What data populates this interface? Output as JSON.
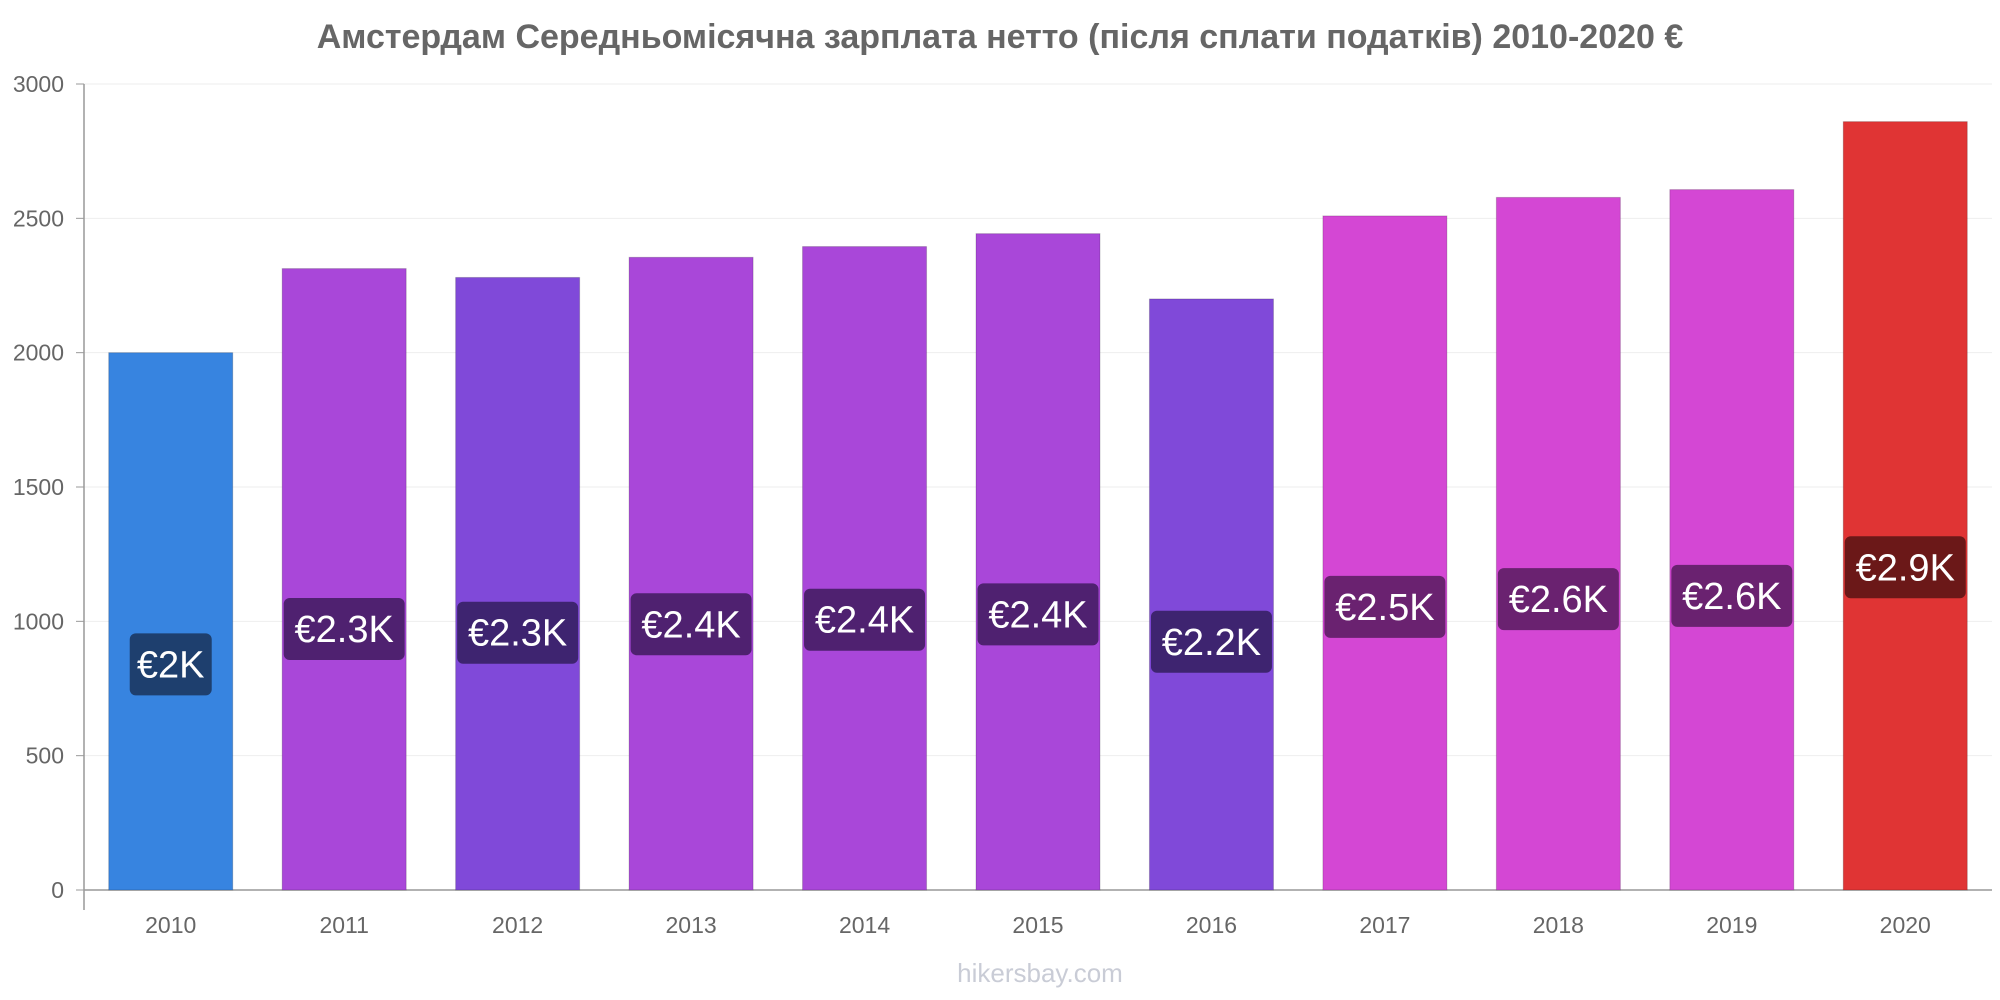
{
  "chart_data": {
    "type": "bar",
    "title": "Амстердам Середньомісячна зарплата нетто (після сплати податків) 2010-2020 €",
    "categories": [
      "2010",
      "2011",
      "2012",
      "2013",
      "2014",
      "2015",
      "2016",
      "2017",
      "2018",
      "2019",
      "2020"
    ],
    "values": [
      2000,
      2313,
      2280,
      2355,
      2395,
      2443,
      2200,
      2509,
      2578,
      2607,
      2860
    ],
    "data_labels": [
      "€2K",
      "€2.3K",
      "€2.3K",
      "€2.4K",
      "€2.4K",
      "€2.4K",
      "€2.2K",
      "€2.5K",
      "€2.6K",
      "€2.6K",
      "€2.9K"
    ],
    "bar_colors": [
      "#3784e0",
      "#a947d9",
      "#8049d9",
      "#a947d9",
      "#a947d9",
      "#a947d9",
      "#8049d9",
      "#d447d4",
      "#d447d4",
      "#d447d4",
      "#e03434"
    ],
    "label_colors": [
      "#1e3f6e",
      "#4f2170",
      "#3e2470",
      "#4f2170",
      "#4f2170",
      "#4f2170",
      "#3e2470",
      "#6a2270",
      "#6a2270",
      "#6a2270",
      "#6b1818"
    ],
    "ylim": [
      0,
      3000
    ],
    "yticks": [
      0,
      500,
      1000,
      1500,
      2000,
      2500,
      3000
    ],
    "xlabel": "",
    "ylabel": "",
    "grid": true,
    "legend": "none"
  },
  "footer": {
    "watermark": "hikersbay.com"
  }
}
